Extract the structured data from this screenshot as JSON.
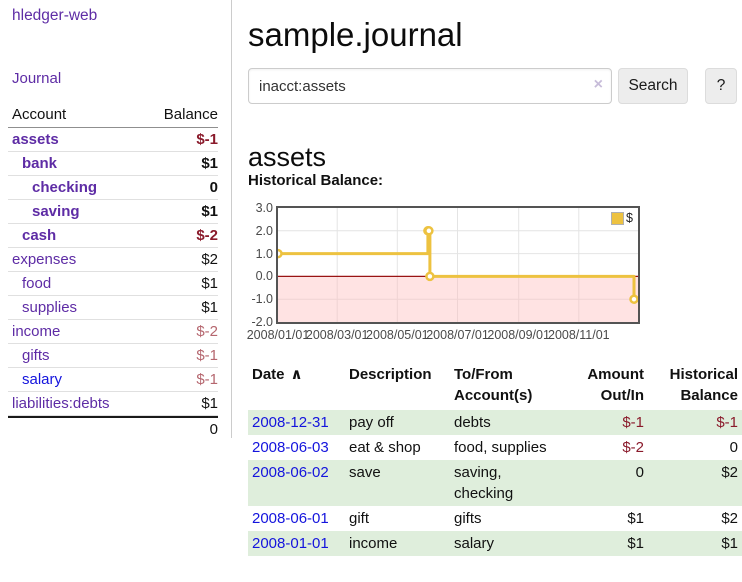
{
  "app": {
    "brand": "hledger-web",
    "nav_journal": "Journal",
    "title": "sample.journal"
  },
  "search": {
    "value": "inacct:assets",
    "clear_icon": "×",
    "button_label": "Search",
    "help_label": "?"
  },
  "sidebar": {
    "header": {
      "account": "Account",
      "balance": "Balance"
    },
    "accounts": [
      {
        "name": "assets",
        "indent": 0,
        "bold": true,
        "balance": "$-1"
      },
      {
        "name": "bank",
        "indent": 1,
        "bold": true,
        "balance": "$1"
      },
      {
        "name": "checking",
        "indent": 2,
        "bold": true,
        "balance": "0"
      },
      {
        "name": "saving",
        "indent": 2,
        "bold": true,
        "balance": "$1"
      },
      {
        "name": "cash",
        "indent": 1,
        "bold": true,
        "balance": "$-2"
      },
      {
        "name": "expenses",
        "indent": 0,
        "bold": false,
        "balance": "$2"
      },
      {
        "name": "food",
        "indent": 1,
        "bold": false,
        "balance": "$1"
      },
      {
        "name": "supplies",
        "indent": 1,
        "bold": false,
        "balance": "$1"
      },
      {
        "name": "income",
        "indent": 0,
        "bold": false,
        "balance": "$-2"
      },
      {
        "name": "gifts",
        "indent": 1,
        "bold": false,
        "balance": "$-1"
      },
      {
        "name": "salary",
        "indent": 1,
        "bold": false,
        "balance": "$-1",
        "blue": true
      },
      {
        "name": "liabilities:debts",
        "indent": 0,
        "bold": false,
        "balance": "$1"
      }
    ],
    "total": "0"
  },
  "main": {
    "heading": "assets",
    "chart_label": "Historical Balance:",
    "register": {
      "headers": {
        "date": "Date",
        "sort_icon": "∧",
        "description": "Description",
        "tofrom_line1": "To/From",
        "tofrom_line2": "Account(s)",
        "amount_line1": "Amount",
        "amount_line2": "Out/In",
        "hist_line1": "Historical",
        "hist_line2": "Balance"
      },
      "rows": [
        {
          "date": "2008-12-31",
          "description": "pay off",
          "accounts": "debts",
          "amount": "$-1",
          "balance": "$-1"
        },
        {
          "date": "2008-06-03",
          "description": "eat & shop",
          "accounts": "food, supplies",
          "amount": "$-2",
          "balance": "0"
        },
        {
          "date": "2008-06-02",
          "description": "save",
          "accounts": "saving, checking",
          "amount": "0",
          "balance": "$2"
        },
        {
          "date": "2008-06-01",
          "description": "gift",
          "accounts": "gifts",
          "amount": "$1",
          "balance": "$2"
        },
        {
          "date": "2008-01-01",
          "description": "income",
          "accounts": "salary",
          "amount": "$1",
          "balance": "$1"
        }
      ]
    }
  },
  "chart_data": {
    "type": "line",
    "step": true,
    "title": "Historical Balance:",
    "series": [
      {
        "name": "$",
        "color": "#edc240",
        "points": [
          [
            "2008-01-01",
            1
          ],
          [
            "2008-06-01",
            2
          ],
          [
            "2008-06-02",
            2
          ],
          [
            "2008-06-03",
            0
          ],
          [
            "2008-12-31",
            -1
          ]
        ]
      }
    ],
    "xlim": [
      "2008-01-01",
      "2008-12-31"
    ],
    "ylim": [
      -2,
      3
    ],
    "x_ticks": [
      "2008/01/01",
      "2008/03/01",
      "2008/05/01",
      "2008/07/01",
      "2008/09/01",
      "2008/11/01"
    ],
    "y_ticks": [
      3.0,
      2.0,
      1.0,
      0.0,
      -1.0,
      -2.0
    ],
    "grid": true,
    "legend_position": "top-right",
    "negative_region": true
  },
  "colors": {
    "purple": "#5e2ca5",
    "link_blue": "#1414dd",
    "negative": "#8a1a2b",
    "negative_muted": "#b5666e",
    "row_green": "#dfeedc",
    "chart_line": "#edc240",
    "chart_negative_fill": "#ffbcbc",
    "chart_zero_line": "#991414",
    "chart_grid": "#e4e4e4",
    "chart_border": "#545454"
  }
}
